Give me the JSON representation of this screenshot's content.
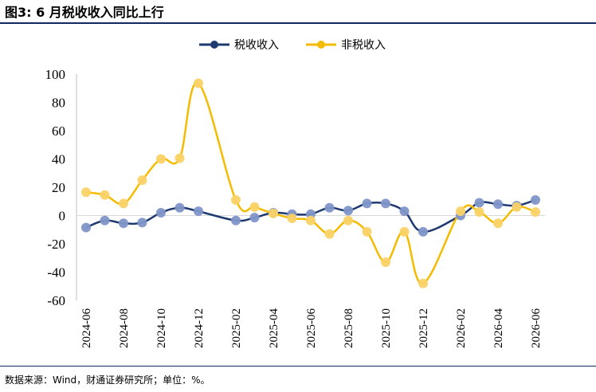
{
  "figure": {
    "title": "图3: 6 月税收收入同比上行",
    "source": "数据来源：Wind，财通证券研究所；单位：%。"
  },
  "colors": {
    "rule": "#12295f",
    "series_tax": "#1f3a70",
    "series_tax_marker": "#7f96c8",
    "series_nontax": "#f5bb00",
    "series_nontax_marker": "#fad266"
  },
  "chart_data": {
    "type": "line",
    "title": "",
    "xlabel": "",
    "ylabel": "",
    "ylim": [
      -60,
      100
    ],
    "yticks": [
      -60,
      -40,
      -20,
      0,
      20,
      40,
      60,
      80,
      100
    ],
    "legend_position": "top-center",
    "grid": false,
    "x": [
      "2024-06",
      "2024-07",
      "2024-08",
      "2024-09",
      "2024-10",
      "2024-11",
      "2024-12",
      "2025-01",
      "2025-02",
      "2025-03",
      "2025-04",
      "2025-05",
      "2025-06",
      "2025-07",
      "2025-08",
      "2025-09",
      "2025-10",
      "2025-11",
      "2025-12",
      "2026-01",
      "2026-02",
      "2026-03",
      "2026-04",
      "2026-05",
      "2026-06"
    ],
    "xtick_labels": [
      "2024-06",
      "2024-08",
      "2024-10",
      "2024-12",
      "2025-02",
      "2025-04",
      "2025-06",
      "2025-08",
      "2025-10",
      "2025-12",
      "2026-02",
      "2026-04",
      "2026-06"
    ],
    "series": [
      {
        "name": "税收收入",
        "values": [
          -8.5,
          -3.5,
          -5.5,
          -5,
          2,
          5.5,
          3,
          null,
          -3.5,
          -1.5,
          2,
          1,
          1,
          5.5,
          3.5,
          8.5,
          8.5,
          3,
          -11.5,
          null,
          0,
          9,
          8,
          7,
          11
        ]
      },
      {
        "name": "非税收入",
        "values": [
          16.5,
          14.5,
          8.5,
          25,
          40,
          40.5,
          93.5,
          null,
          11,
          6,
          1.5,
          -2,
          -3.5,
          -13,
          -3.5,
          -11.5,
          -33,
          -11.5,
          -48,
          null,
          3,
          2.5,
          -5.5,
          6,
          2.5
        ]
      }
    ]
  }
}
